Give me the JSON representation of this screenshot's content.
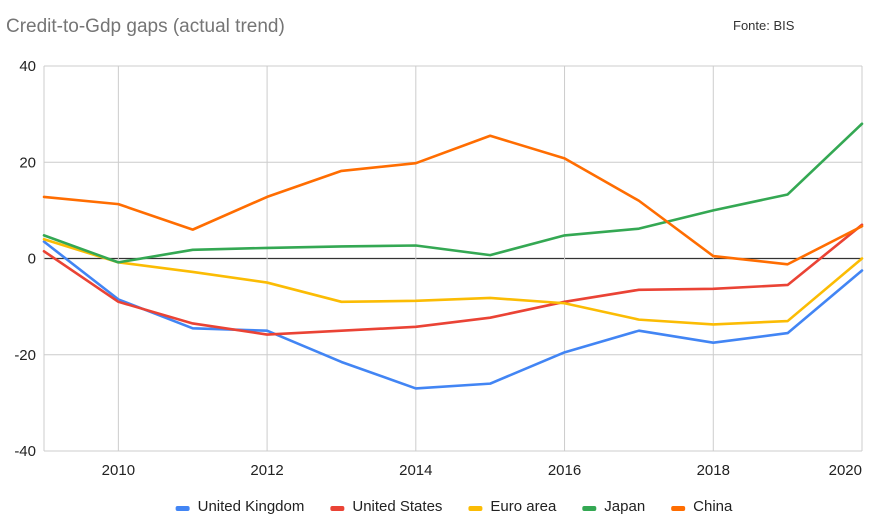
{
  "chart_data": {
    "type": "line",
    "title": "Credit-to-Gdp gaps (actual trend)",
    "source_note": "Fonte: BIS",
    "x": [
      2009,
      2010,
      2011,
      2012,
      2013,
      2014,
      2015,
      2016,
      2017,
      2018,
      2019,
      2020
    ],
    "xlim": [
      2009,
      2020
    ],
    "ylim": [
      -40,
      40
    ],
    "x_ticks": [
      2010,
      2012,
      2014,
      2016,
      2018,
      2020
    ],
    "y_ticks": [
      40,
      20,
      0,
      -20,
      -40
    ],
    "grid": true,
    "legend_position": "bottom",
    "series": [
      {
        "name": "United Kingdom",
        "color": "#4285F4",
        "values": [
          3.5,
          -8.5,
          -14.5,
          -15,
          -21.5,
          -27,
          -26,
          -19.5,
          -15,
          -17.5,
          -15.5,
          -2.5
        ]
      },
      {
        "name": "United States",
        "color": "#EA4335",
        "values": [
          1.5,
          -9,
          -13.5,
          -15.8,
          -15,
          -14.2,
          -12.3,
          -9,
          -6.5,
          -6.3,
          -5.5,
          7
        ]
      },
      {
        "name": "Euro area",
        "color": "#FBBC04",
        "values": [
          4,
          -0.8,
          -2.8,
          -5,
          -9,
          -8.8,
          -8.2,
          -9.3,
          -12.7,
          -13.7,
          -13,
          0
        ]
      },
      {
        "name": "Japan",
        "color": "#34A853",
        "values": [
          4.8,
          -0.8,
          1.8,
          2.2,
          2.5,
          2.7,
          0.7,
          4.8,
          6.2,
          10,
          13.3,
          28
        ]
      },
      {
        "name": "China",
        "color": "#FF6D01",
        "values": [
          12.8,
          11.3,
          6,
          12.8,
          18.2,
          19.8,
          25.5,
          20.8,
          12,
          0.5,
          -1.2,
          6.7
        ]
      }
    ]
  }
}
